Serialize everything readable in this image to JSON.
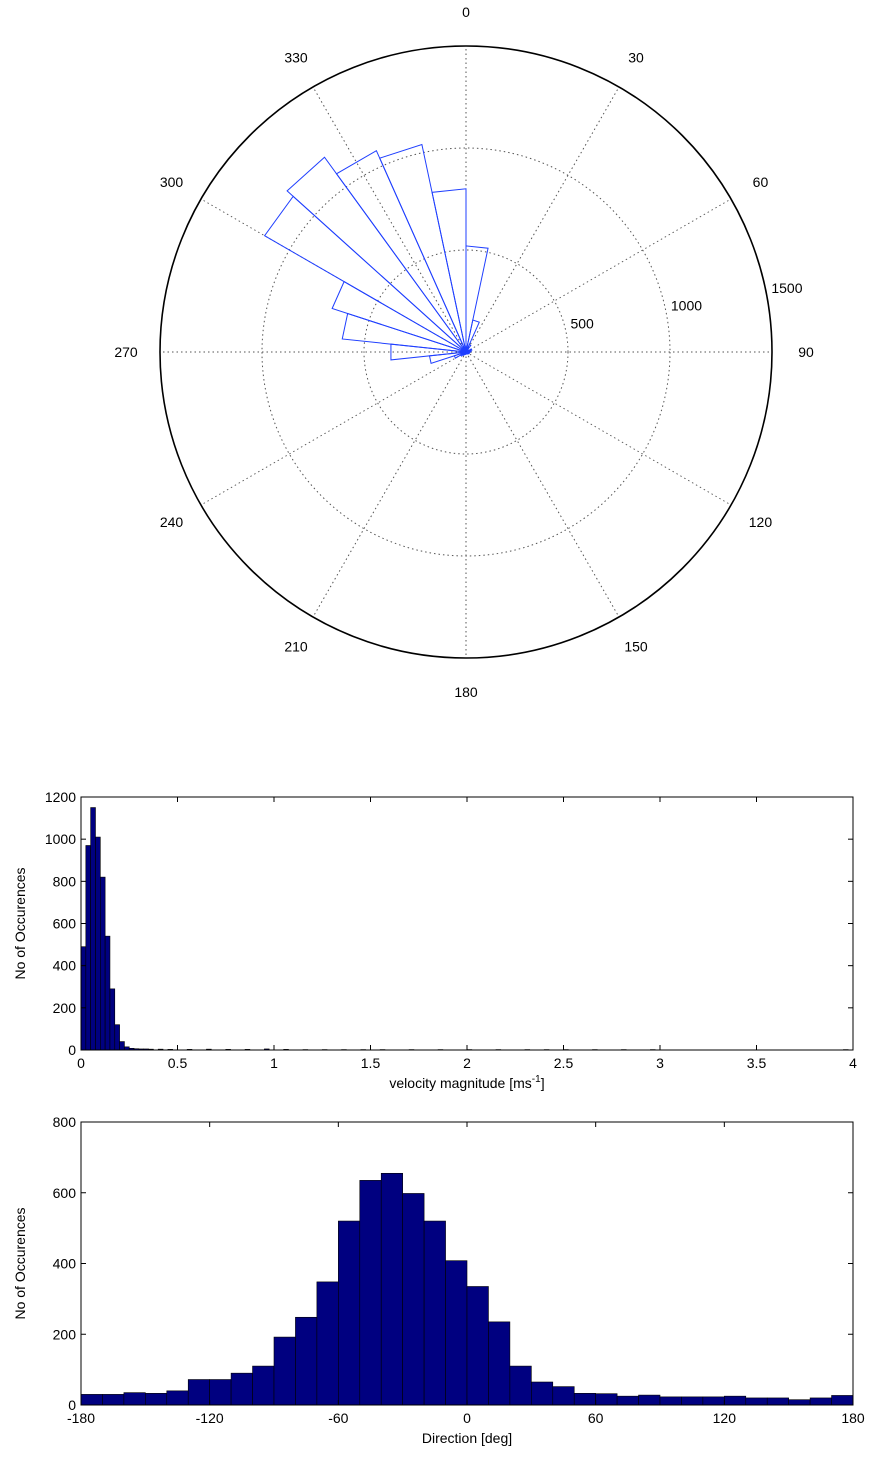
{
  "chart_data": [
    {
      "type": "rose",
      "angle_ticks": [
        "0",
        "30",
        "60",
        "90",
        "120",
        "150",
        "180",
        "210",
        "240",
        "270",
        "300",
        "330"
      ],
      "radial_ticks": [
        "500",
        "1000",
        "1500"
      ],
      "radial_max": 1500,
      "bin_width_deg": 12,
      "bins": [
        {
          "center_deg": 354,
          "value": 800
        },
        {
          "center_deg": 6,
          "value": 520
        },
        {
          "center_deg": 18,
          "value": 160
        },
        {
          "center_deg": 30,
          "value": 40
        },
        {
          "center_deg": 42,
          "value": 15
        },
        {
          "center_deg": 306,
          "value": 1140
        },
        {
          "center_deg": 318,
          "value": 1180
        },
        {
          "center_deg": 330,
          "value": 1080
        },
        {
          "center_deg": 342,
          "value": 1040
        },
        {
          "center_deg": 294,
          "value": 690
        },
        {
          "center_deg": 282,
          "value": 610
        },
        {
          "center_deg": 270,
          "value": 370
        },
        {
          "center_deg": 258,
          "value": 180
        },
        {
          "center_deg": 246,
          "value": 60
        },
        {
          "center_deg": 234,
          "value": 30
        },
        {
          "center_deg": 222,
          "value": 20
        },
        {
          "center_deg": 210,
          "value": 15
        },
        {
          "center_deg": 198,
          "value": 12
        },
        {
          "center_deg": 186,
          "value": 10
        },
        {
          "center_deg": 174,
          "value": 10
        },
        {
          "center_deg": 162,
          "value": 10
        },
        {
          "center_deg": 150,
          "value": 10
        },
        {
          "center_deg": 138,
          "value": 12
        },
        {
          "center_deg": 126,
          "value": 14
        },
        {
          "center_deg": 114,
          "value": 16
        },
        {
          "center_deg": 102,
          "value": 18
        },
        {
          "center_deg": 90,
          "value": 20
        },
        {
          "center_deg": 78,
          "value": 25
        },
        {
          "center_deg": 66,
          "value": 30
        },
        {
          "center_deg": 54,
          "value": 15
        }
      ]
    },
    {
      "type": "histogram",
      "xlabel": "velocity magnitude [ms",
      "xlabel_sup": "-1",
      "xlabel_end": "]",
      "ylabel": "No of Occurences",
      "xlim": [
        0,
        4
      ],
      "ylim": [
        0,
        1200
      ],
      "xticks": [
        "0",
        "0.5",
        "1",
        "1.5",
        "2",
        "2.5",
        "3",
        "3.5",
        "4"
      ],
      "yticks": [
        "0",
        "200",
        "400",
        "600",
        "800",
        "1000",
        "1200"
      ],
      "bin_width": 0.025,
      "bins": [
        {
          "x": 0.0125,
          "value": 490
        },
        {
          "x": 0.0375,
          "value": 970
        },
        {
          "x": 0.0625,
          "value": 1150
        },
        {
          "x": 0.0875,
          "value": 1010
        },
        {
          "x": 0.1125,
          "value": 820
        },
        {
          "x": 0.1375,
          "value": 540
        },
        {
          "x": 0.1625,
          "value": 290
        },
        {
          "x": 0.1875,
          "value": 120
        },
        {
          "x": 0.2125,
          "value": 40
        },
        {
          "x": 0.2375,
          "value": 15
        },
        {
          "x": 0.2625,
          "value": 8
        },
        {
          "x": 0.2875,
          "value": 6
        },
        {
          "x": 0.3125,
          "value": 5
        },
        {
          "x": 0.3375,
          "value": 5
        },
        {
          "x": 0.3625,
          "value": 4
        },
        {
          "x": 0.4125,
          "value": 4
        },
        {
          "x": 0.4625,
          "value": 3
        },
        {
          "x": 0.5625,
          "value": 3
        },
        {
          "x": 0.6625,
          "value": 4
        },
        {
          "x": 0.7625,
          "value": 3
        },
        {
          "x": 0.8625,
          "value": 3
        },
        {
          "x": 0.9625,
          "value": 5
        },
        {
          "x": 1.0625,
          "value": 3
        },
        {
          "x": 1.1625,
          "value": 2
        },
        {
          "x": 1.2625,
          "value": 2
        },
        {
          "x": 1.3625,
          "value": 2
        },
        {
          "x": 1.4625,
          "value": 2
        },
        {
          "x": 1.5625,
          "value": 2
        },
        {
          "x": 1.7125,
          "value": 2
        },
        {
          "x": 1.8625,
          "value": 2
        },
        {
          "x": 2.0125,
          "value": 2
        },
        {
          "x": 2.1625,
          "value": 2
        },
        {
          "x": 2.3125,
          "value": 2
        },
        {
          "x": 2.4125,
          "value": 2
        },
        {
          "x": 2.5125,
          "value": 2
        },
        {
          "x": 2.6625,
          "value": 2
        },
        {
          "x": 2.8125,
          "value": 2
        },
        {
          "x": 2.9625,
          "value": 2
        },
        {
          "x": 3.9625,
          "value": 2
        }
      ]
    },
    {
      "type": "histogram",
      "xlabel": "Direction [deg]",
      "ylabel": "No of Occurences",
      "xlim": [
        -180,
        180
      ],
      "ylim": [
        0,
        800
      ],
      "xticks": [
        "-180",
        "-120",
        "-60",
        "0",
        "60",
        "120",
        "180"
      ],
      "yticks": [
        "0",
        "200",
        "400",
        "600",
        "800"
      ],
      "bin_width": 10,
      "bins": [
        {
          "x": -175,
          "value": 30
        },
        {
          "x": -165,
          "value": 30
        },
        {
          "x": -155,
          "value": 35
        },
        {
          "x": -145,
          "value": 33
        },
        {
          "x": -135,
          "value": 40
        },
        {
          "x": -125,
          "value": 72
        },
        {
          "x": -115,
          "value": 72
        },
        {
          "x": -105,
          "value": 90
        },
        {
          "x": -95,
          "value": 110
        },
        {
          "x": -85,
          "value": 192
        },
        {
          "x": -75,
          "value": 248
        },
        {
          "x": -65,
          "value": 348
        },
        {
          "x": -55,
          "value": 520
        },
        {
          "x": -45,
          "value": 635
        },
        {
          "x": -35,
          "value": 655
        },
        {
          "x": -25,
          "value": 598
        },
        {
          "x": -15,
          "value": 520
        },
        {
          "x": -5,
          "value": 408
        },
        {
          "x": 5,
          "value": 335
        },
        {
          "x": 15,
          "value": 235
        },
        {
          "x": 25,
          "value": 110
        },
        {
          "x": 35,
          "value": 65
        },
        {
          "x": 45,
          "value": 52
        },
        {
          "x": 55,
          "value": 33
        },
        {
          "x": 65,
          "value": 32
        },
        {
          "x": 75,
          "value": 25
        },
        {
          "x": 85,
          "value": 28
        },
        {
          "x": 95,
          "value": 23
        },
        {
          "x": 105,
          "value": 23
        },
        {
          "x": 115,
          "value": 23
        },
        {
          "x": 125,
          "value": 25
        },
        {
          "x": 135,
          "value": 20
        },
        {
          "x": 145,
          "value": 20
        },
        {
          "x": 155,
          "value": 15
        },
        {
          "x": 165,
          "value": 20
        },
        {
          "x": 175,
          "value": 27
        }
      ]
    }
  ]
}
